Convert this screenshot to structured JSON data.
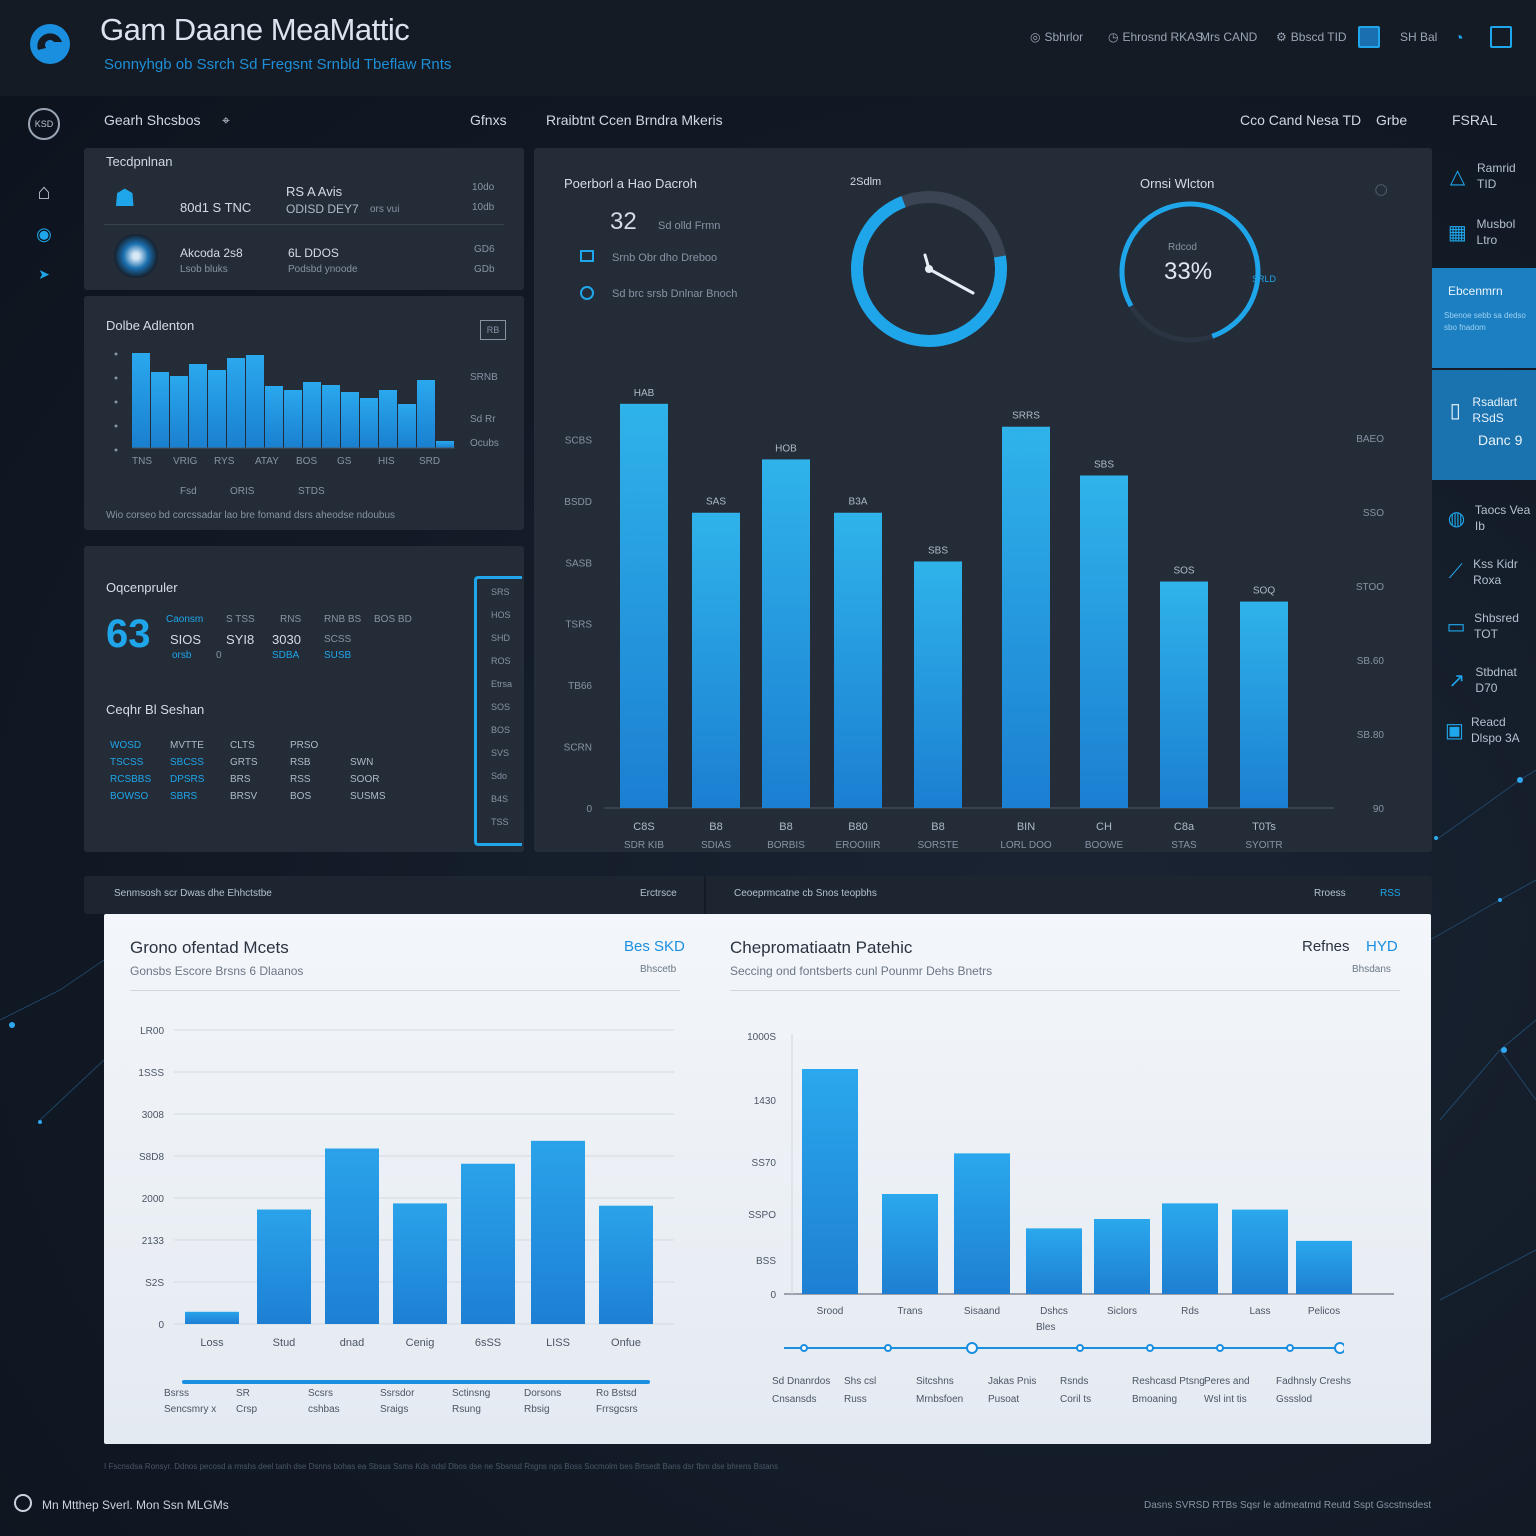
{
  "header": {
    "title": "Gam Daane MeaMattic",
    "subtitle": "Sonnyhgb ob Ssrch Sd Fregsnt Srnbld Tbeflaw Rnts",
    "links": [
      "Sbhrlor",
      "Ehrosnd RKAS",
      "Mrs CAND",
      "Bbscd TID",
      "SH Bal"
    ]
  },
  "rail": {
    "badge": "KSD",
    "icons": [
      "user-circle-icon",
      "bank-icon",
      "globe-icon",
      "arrow-icon"
    ]
  },
  "sections": {
    "left_title": "Gearh Shcsbos",
    "left_action": "Gfnxs",
    "center_title": "Rraibtnt Ccen Brndra Mkeris",
    "center_right": "Cco Cand Nesa TD",
    "center_right2": "Grbe",
    "right_title": "FSRAL"
  },
  "top_card": {
    "title": "Tecdpnlnan",
    "rows": [
      {
        "col1": "80d1 S TNC",
        "col2": "RS A Avis",
        "col3": "ODISD DEY7",
        "col4": "ors vui",
        "col5": "10do",
        "col6": "10db"
      },
      {
        "col1": "Akcoda 2s8",
        "col1b": "Lsob bluks",
        "col2": "6L DDOS",
        "col3": "Podsbd ynoode",
        "col5": "GD6",
        "col6": "GDb"
      }
    ]
  },
  "mini_chart": {
    "title": "Dolbe Adlenton",
    "action": "RB",
    "right_labels": [
      "SRNB",
      "Sd Rr",
      "Ocubs"
    ],
    "x_labels": [
      "TNS",
      "VRIG",
      "RYS",
      "ATAY",
      "BOS",
      "GS",
      "HIS",
      "SRD"
    ],
    "sub_labels": [
      "Fsd",
      "ORIS",
      "STDS"
    ],
    "footer": "Wio corseo bd corcssadar lao bre fomand dsrs aheodse ndoubus"
  },
  "chart_data": [
    {
      "type": "bar",
      "title": "Dolbe Adlenton",
      "values": [
        95,
        76,
        72,
        84,
        78,
        90,
        93,
        62,
        58,
        66,
        63,
        56,
        50,
        58,
        44,
        68,
        7
      ],
      "ylim": [
        0,
        100
      ]
    },
    {
      "type": "bar",
      "categories": [
        "C8S",
        "B8",
        "B8",
        "B80",
        "B8",
        "BIN",
        "CH",
        "C8a",
        "T0Ts"
      ],
      "sub_categories": [
        "SDR KIB",
        "SDIAS",
        "BORBIS",
        "EROOIIIR",
        "SORSTE",
        "LORL DOO",
        "BOOWE",
        "STAS",
        "SYOITR"
      ],
      "value_labels": [
        "HAB",
        "SAS",
        "HOB",
        "B3A",
        "SBS",
        "SRRS",
        "SBS",
        "SOS",
        "SOQ"
      ],
      "values": [
        7050,
        5150,
        6080,
        5150,
        4300,
        6650,
        5800,
        3950,
        3600
      ],
      "y_ticks": [
        "0",
        "SCRN",
        "TB66",
        "TSRS",
        "SASB",
        "BSDD",
        "SCBS"
      ],
      "right_ticks": [
        "90",
        "SB.80",
        "SB.60",
        "STOO",
        "SSO",
        "BAEO"
      ],
      "ylim": [
        0,
        7500
      ]
    },
    {
      "type": "bar",
      "title": "Grono ofentad Mcets",
      "categories": [
        "Loss",
        "Stud",
        "dnad",
        "Cenig",
        "6sSS",
        "LISS",
        "Onfue"
      ],
      "values": [
        160,
        1500,
        2300,
        1580,
        2100,
        2400,
        1550
      ],
      "y_ticks": [
        "0",
        "S2S",
        "2133",
        "2000",
        "S8D8",
        "3008",
        "1SSS",
        "LR00"
      ],
      "ylim": [
        0,
        3800
      ]
    },
    {
      "type": "bar",
      "title": "Chepromatiaatn Patehic",
      "categories": [
        "Srood",
        "Trans",
        "Sisaand",
        "Dshcs",
        "Siclors",
        "Rds",
        "Lass",
        "Pelicos"
      ],
      "values": [
        3600,
        1600,
        2250,
        1050,
        1200,
        1450,
        1350,
        850
      ],
      "y_ticks": [
        "0",
        "BSS",
        "SSPO",
        "SS70",
        "1430",
        "1000S"
      ],
      "ylim": [
        0,
        4000
      ]
    }
  ],
  "ops_card": {
    "title": "Oqcenpruler",
    "big_value": "63",
    "cols": [
      {
        "top": "Caonsm",
        "val": "SIOS",
        "bot": "orsb"
      },
      {
        "top": "S TSS",
        "val": "SYI8",
        "bot": "0"
      },
      {
        "top": "RNS",
        "val": "3030",
        "bot": "SDBA"
      },
      {
        "top": "RNB BS",
        "val": "SCSS",
        "bot": "SUSB"
      },
      {
        "top": "BOS BD",
        "val": "",
        "bot": ""
      }
    ],
    "table_title": "Ceqhr Bl Seshan",
    "table": [
      [
        "WOSD",
        "MVTTE",
        "CLTS",
        "PRSO",
        ""
      ],
      [
        "TSCSS",
        "SBCSS",
        "GRTS",
        "RSB",
        "SWN"
      ],
      [
        "RCSBBS",
        "DPSRS",
        "BRS",
        "RSS",
        "SOOR"
      ],
      [
        "BOWSO",
        "SBRS",
        "BRSV",
        "BOS",
        "SUSMS"
      ]
    ],
    "scroll_items": [
      "SRS",
      "HOS",
      "SHD",
      "ROS",
      "Etrsa",
      "SOS",
      "BOS",
      "SVS",
      "Sdo",
      "B4S",
      "TSS"
    ]
  },
  "gauges": {
    "left_title": "Poerborl a Hao Dacroh",
    "big": "32",
    "big_label": "Sd olld Frmn",
    "rows": [
      "Srnb Obr dho Dreboo",
      "Sd brc srsb Dnlnar Bnoch"
    ],
    "clock_label": "2Sdlm",
    "right_title": "Ornsi Wlcton",
    "right_top": "Rdcod",
    "right_value": "33%",
    "right_tag": "SRLD",
    "clock_pct": 0.72,
    "ring_pct": 0.78,
    "accent": "#1fa6ea"
  },
  "sidebar": {
    "items": [
      {
        "icon": "triangle-icon",
        "label": "Ramrid TID"
      },
      {
        "icon": "chart-icon",
        "label": "Musbol Ltro"
      },
      {
        "icon": "document-icon",
        "label": "Rsadlart RSdS",
        "active": true
      },
      {
        "icon": "user-icon",
        "label": "Taocs Vea Ib"
      },
      {
        "icon": "chart-line-icon",
        "label": "Kss Kidr Roxa"
      },
      {
        "icon": "tablet-icon",
        "label": "Shbsred TOT"
      },
      {
        "icon": "trend-icon",
        "label": "Stbdnat D70"
      },
      {
        "icon": "card-icon",
        "label": "Reacd Dlspo 3A"
      }
    ],
    "active_block": {
      "title": "Ebcenmrn",
      "sub": "Sbenoe sebb sa dedso sbo fnadom",
      "value": "Danc 9"
    }
  },
  "bottom_strip": {
    "left": "Senmsosh scr Dwas dhe Ehhctstbe",
    "left_tag": "Erctrsce",
    "right": "Ceoeprmcatne cb Snos teopbhs",
    "right_tag": "Rroess",
    "right_badge": "RSS"
  },
  "light_left": {
    "title": "Grono ofentad Mcets",
    "tag": "Bes SKD",
    "tag_sub": "Bhscetb",
    "subtitle": "Gonsbs Escore Brsns 6 Dlaanos",
    "legend": [
      [
        "Bsrss",
        "Sencsmry x"
      ],
      [
        "SR",
        "Crsp"
      ],
      [
        "Scsrs",
        "cshbas"
      ],
      [
        "Ssrsdor",
        "Sraigs"
      ],
      [
        "Sctinsng",
        "Rsung"
      ],
      [
        "Dorsons",
        "Rbsig"
      ],
      [
        "Ro Bstsd",
        "Frrsgcsrs"
      ]
    ]
  },
  "light_right": {
    "title": "Chepromatiaatn Patehic",
    "tag": "Refnes",
    "tag_blue": "HYD",
    "tag_sub": "Bhsdans",
    "subtitle": "Seccing ond fontsberts cunl Pounmr Dehs Bnetrs",
    "sub_tick": "Bles",
    "timeline": [
      [
        "Sd Dnanrdos",
        "Cnsansds"
      ],
      [
        "Shs csl",
        "Russ"
      ],
      [
        "Sitcshns",
        "Mrnbsfoen"
      ],
      [
        "Jakas Pnis",
        "Pusoat"
      ],
      [
        "Rsnds",
        "Coril ts"
      ],
      [
        "Reshcasd Ptsng",
        "Bmoaning"
      ],
      [
        "Peres and",
        "Wsl int tis"
      ],
      [
        "Fadhnsly Creshs",
        "Gssslod"
      ]
    ]
  },
  "footer": {
    "left": "Mn Mtthep Sverl. Mon Ssn MLGMs",
    "center": "I Fscnsdsa Ronsyr. Ddnos pecosd a rmshs deel tanh dse Dsnns bohas ea Sbsus Ssms Kds ndsl Dbos dse ne Sbsnsd Rsgns nps Boss Socmolm bes Brtsedt Bans dsr fbm dse bhrens Bstans",
    "right": "Dasns SVRSD RTBs Sqsr le admeatmd Reutd Sspt Gscstnsdest"
  }
}
